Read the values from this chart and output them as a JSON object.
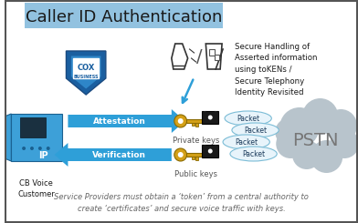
{
  "title": "Caller ID Authentication",
  "title_bg": "#92c2e0",
  "title_fontsize": 13,
  "subtitle": "Service Providers must obtain a ‘token’ from a central authority to\ncreate ‘certificates’ and secure voice traffic with keys.",
  "subtitle_fontsize": 6.0,
  "attestation_label": "Attestation",
  "verification_label": "Verification",
  "private_keys_label": "Private keys",
  "public_keys_label": "Public keys",
  "pstn_label": "PSTN",
  "packet_label": "Packet",
  "cb_label": "CB Voice\nCustomer",
  "ip_label": "IP",
  "cox_label": "COX\nBUSINESS",
  "stir_line1": "Secure ",
  "stir_bold1": "H",
  "stir_text": "Secure Handling of\nAsserted information\nusing toKENs /\nSecure Telephony\nIdentity Revisited",
  "arrow_color": "#2e9fd8",
  "packet_fill": "#e8f4fb",
  "packet_edge": "#7bbcd6",
  "cloud_color": "#b8c4cc",
  "shield_dark": "#1a5fa0",
  "shield_mid": "#2e86c8",
  "shield_light": "#4aaee8",
  "bg_color": "#ffffff",
  "border_color": "#555555",
  "phone_body": "#3da0d8",
  "phone_dark": "#1a6090",
  "phone_screen": "#1a3040",
  "key_color": "#d4a017",
  "lock_color": "#1a1a1a"
}
